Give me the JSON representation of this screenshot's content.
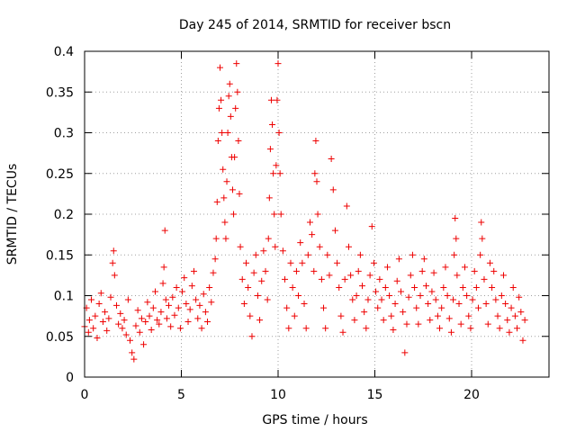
{
  "chart_data": {
    "type": "scatter",
    "title": "Day 245 of 2014, SRMTID for receiver bscn",
    "xlabel": "GPS time / hours",
    "ylabel": "SRMTID / TECUs",
    "xlim": [
      0,
      24
    ],
    "ylim": [
      0,
      0.4
    ],
    "xticks": [
      0,
      5,
      10,
      15,
      20
    ],
    "xtick_labels": [
      "0",
      "5",
      "10",
      "15",
      "20"
    ],
    "yticks": [
      0,
      0.05,
      0.1,
      0.15,
      0.2,
      0.25,
      0.3,
      0.35,
      0.4
    ],
    "ytick_labels": [
      "0",
      "0.05",
      "0.1",
      "0.15",
      "0.2",
      "0.25",
      "0.3",
      "0.35",
      "0.4"
    ],
    "grid": true,
    "marker": "+",
    "colors": {
      "series": "#ee0000",
      "grid": "#a0a0a0",
      "axis": "#000000"
    },
    "series": [
      {
        "name": "SRMTID",
        "points": [
          [
            0.0,
            0.062
          ],
          [
            0.1,
            0.085
          ],
          [
            0.2,
            0.055
          ],
          [
            0.25,
            0.07
          ],
          [
            0.35,
            0.095
          ],
          [
            0.45,
            0.06
          ],
          [
            0.55,
            0.075
          ],
          [
            0.65,
            0.048
          ],
          [
            0.75,
            0.09
          ],
          [
            0.85,
            0.103
          ],
          [
            0.95,
            0.068
          ],
          [
            1.05,
            0.08
          ],
          [
            1.15,
            0.057
          ],
          [
            1.25,
            0.072
          ],
          [
            1.35,
            0.098
          ],
          [
            1.45,
            0.14
          ],
          [
            1.5,
            0.155
          ],
          [
            1.55,
            0.125
          ],
          [
            1.65,
            0.088
          ],
          [
            1.75,
            0.065
          ],
          [
            1.85,
            0.078
          ],
          [
            1.95,
            0.06
          ],
          [
            2.05,
            0.07
          ],
          [
            2.15,
            0.052
          ],
          [
            2.25,
            0.095
          ],
          [
            2.35,
            0.045
          ],
          [
            2.45,
            0.03
          ],
          [
            2.55,
            0.022
          ],
          [
            2.65,
            0.063
          ],
          [
            2.75,
            0.082
          ],
          [
            2.85,
            0.055
          ],
          [
            2.95,
            0.072
          ],
          [
            3.05,
            0.04
          ],
          [
            3.15,
            0.068
          ],
          [
            3.25,
            0.092
          ],
          [
            3.35,
            0.075
          ],
          [
            3.45,
            0.058
          ],
          [
            3.55,
            0.085
          ],
          [
            3.65,
            0.105
          ],
          [
            3.75,
            0.07
          ],
          [
            3.85,
            0.065
          ],
          [
            3.95,
            0.08
          ],
          [
            4.05,
            0.115
          ],
          [
            4.1,
            0.135
          ],
          [
            4.15,
            0.18
          ],
          [
            4.2,
            0.095
          ],
          [
            4.25,
            0.072
          ],
          [
            4.35,
            0.088
          ],
          [
            4.45,
            0.062
          ],
          [
            4.55,
            0.098
          ],
          [
            4.65,
            0.076
          ],
          [
            4.75,
            0.11
          ],
          [
            4.85,
            0.085
          ],
          [
            4.95,
            0.06
          ],
          [
            5.05,
            0.105
          ],
          [
            5.15,
            0.122
          ],
          [
            5.25,
            0.09
          ],
          [
            5.35,
            0.068
          ],
          [
            5.45,
            0.083
          ],
          [
            5.55,
            0.112
          ],
          [
            5.65,
            0.13
          ],
          [
            5.75,
            0.095
          ],
          [
            5.85,
            0.072
          ],
          [
            5.95,
            0.088
          ],
          [
            6.05,
            0.06
          ],
          [
            6.15,
            0.102
          ],
          [
            6.25,
            0.08
          ],
          [
            6.35,
            0.068
          ],
          [
            6.45,
            0.11
          ],
          [
            6.55,
            0.092
          ],
          [
            6.65,
            0.128
          ],
          [
            6.75,
            0.145
          ],
          [
            6.8,
            0.17
          ],
          [
            6.85,
            0.215
          ],
          [
            6.9,
            0.29
          ],
          [
            6.95,
            0.33
          ],
          [
            7.0,
            0.38
          ],
          [
            7.05,
            0.34
          ],
          [
            7.1,
            0.3
          ],
          [
            7.15,
            0.255
          ],
          [
            7.2,
            0.22
          ],
          [
            7.25,
            0.19
          ],
          [
            7.3,
            0.17
          ],
          [
            7.35,
            0.24
          ],
          [
            7.4,
            0.3
          ],
          [
            7.45,
            0.345
          ],
          [
            7.5,
            0.36
          ],
          [
            7.55,
            0.32
          ],
          [
            7.6,
            0.27
          ],
          [
            7.65,
            0.23
          ],
          [
            7.7,
            0.2
          ],
          [
            7.75,
            0.27
          ],
          [
            7.8,
            0.33
          ],
          [
            7.85,
            0.385
          ],
          [
            7.9,
            0.35
          ],
          [
            7.95,
            0.29
          ],
          [
            8.0,
            0.225
          ],
          [
            8.05,
            0.16
          ],
          [
            8.15,
            0.12
          ],
          [
            8.25,
            0.09
          ],
          [
            8.35,
            0.14
          ],
          [
            8.45,
            0.11
          ],
          [
            8.55,
            0.075
          ],
          [
            8.65,
            0.05
          ],
          [
            8.75,
            0.128
          ],
          [
            8.85,
            0.15
          ],
          [
            8.95,
            0.1
          ],
          [
            9.05,
            0.07
          ],
          [
            9.15,
            0.118
          ],
          [
            9.25,
            0.155
          ],
          [
            9.35,
            0.13
          ],
          [
            9.45,
            0.095
          ],
          [
            9.5,
            0.17
          ],
          [
            9.55,
            0.22
          ],
          [
            9.6,
            0.28
          ],
          [
            9.65,
            0.34
          ],
          [
            9.7,
            0.31
          ],
          [
            9.75,
            0.25
          ],
          [
            9.8,
            0.2
          ],
          [
            9.85,
            0.16
          ],
          [
            9.9,
            0.26
          ],
          [
            9.95,
            0.34
          ],
          [
            10.0,
            0.385
          ],
          [
            10.05,
            0.3
          ],
          [
            10.1,
            0.25
          ],
          [
            10.15,
            0.2
          ],
          [
            10.25,
            0.155
          ],
          [
            10.35,
            0.12
          ],
          [
            10.45,
            0.085
          ],
          [
            10.55,
            0.06
          ],
          [
            10.65,
            0.14
          ],
          [
            10.75,
            0.11
          ],
          [
            10.85,
            0.075
          ],
          [
            10.95,
            0.13
          ],
          [
            11.05,
            0.1
          ],
          [
            11.15,
            0.165
          ],
          [
            11.25,
            0.14
          ],
          [
            11.35,
            0.09
          ],
          [
            11.45,
            0.06
          ],
          [
            11.55,
            0.15
          ],
          [
            11.65,
            0.19
          ],
          [
            11.75,
            0.175
          ],
          [
            11.85,
            0.13
          ],
          [
            11.9,
            0.25
          ],
          [
            11.95,
            0.29
          ],
          [
            12.0,
            0.24
          ],
          [
            12.05,
            0.2
          ],
          [
            12.15,
            0.16
          ],
          [
            12.25,
            0.12
          ],
          [
            12.35,
            0.085
          ],
          [
            12.45,
            0.06
          ],
          [
            12.55,
            0.15
          ],
          [
            12.65,
            0.125
          ],
          [
            12.75,
            0.268
          ],
          [
            12.85,
            0.23
          ],
          [
            12.95,
            0.18
          ],
          [
            13.05,
            0.14
          ],
          [
            13.15,
            0.11
          ],
          [
            13.25,
            0.075
          ],
          [
            13.35,
            0.055
          ],
          [
            13.45,
            0.12
          ],
          [
            13.55,
            0.21
          ],
          [
            13.65,
            0.16
          ],
          [
            13.75,
            0.125
          ],
          [
            13.85,
            0.095
          ],
          [
            13.95,
            0.07
          ],
          [
            14.05,
            0.1
          ],
          [
            14.15,
            0.13
          ],
          [
            14.25,
            0.15
          ],
          [
            14.35,
            0.112
          ],
          [
            14.45,
            0.08
          ],
          [
            14.55,
            0.06
          ],
          [
            14.65,
            0.095
          ],
          [
            14.75,
            0.125
          ],
          [
            14.85,
            0.185
          ],
          [
            14.95,
            0.14
          ],
          [
            15.05,
            0.105
          ],
          [
            15.15,
            0.085
          ],
          [
            15.25,
            0.12
          ],
          [
            15.35,
            0.095
          ],
          [
            15.45,
            0.07
          ],
          [
            15.55,
            0.11
          ],
          [
            15.65,
            0.135
          ],
          [
            15.75,
            0.1
          ],
          [
            15.85,
            0.075
          ],
          [
            15.95,
            0.058
          ],
          [
            16.05,
            0.09
          ],
          [
            16.15,
            0.118
          ],
          [
            16.25,
            0.145
          ],
          [
            16.35,
            0.105
          ],
          [
            16.45,
            0.08
          ],
          [
            16.55,
            0.03
          ],
          [
            16.65,
            0.065
          ],
          [
            16.75,
            0.098
          ],
          [
            16.85,
            0.125
          ],
          [
            16.95,
            0.15
          ],
          [
            17.05,
            0.11
          ],
          [
            17.15,
            0.085
          ],
          [
            17.25,
            0.065
          ],
          [
            17.35,
            0.1
          ],
          [
            17.45,
            0.13
          ],
          [
            17.55,
            0.145
          ],
          [
            17.65,
            0.112
          ],
          [
            17.75,
            0.09
          ],
          [
            17.85,
            0.07
          ],
          [
            17.95,
            0.105
          ],
          [
            18.05,
            0.128
          ],
          [
            18.15,
            0.095
          ],
          [
            18.25,
            0.075
          ],
          [
            18.35,
            0.06
          ],
          [
            18.45,
            0.085
          ],
          [
            18.55,
            0.11
          ],
          [
            18.65,
            0.135
          ],
          [
            18.75,
            0.1
          ],
          [
            18.85,
            0.072
          ],
          [
            18.95,
            0.055
          ],
          [
            19.05,
            0.095
          ],
          [
            19.1,
            0.15
          ],
          [
            19.15,
            0.195
          ],
          [
            19.2,
            0.17
          ],
          [
            19.25,
            0.125
          ],
          [
            19.35,
            0.09
          ],
          [
            19.45,
            0.065
          ],
          [
            19.55,
            0.11
          ],
          [
            19.65,
            0.135
          ],
          [
            19.75,
            0.1
          ],
          [
            19.85,
            0.075
          ],
          [
            19.95,
            0.06
          ],
          [
            20.05,
            0.095
          ],
          [
            20.15,
            0.13
          ],
          [
            20.25,
            0.11
          ],
          [
            20.35,
            0.085
          ],
          [
            20.45,
            0.15
          ],
          [
            20.5,
            0.19
          ],
          [
            20.55,
            0.17
          ],
          [
            20.65,
            0.12
          ],
          [
            20.75,
            0.09
          ],
          [
            20.85,
            0.065
          ],
          [
            20.95,
            0.14
          ],
          [
            21.05,
            0.11
          ],
          [
            21.15,
            0.13
          ],
          [
            21.25,
            0.095
          ],
          [
            21.35,
            0.075
          ],
          [
            21.45,
            0.06
          ],
          [
            21.55,
            0.1
          ],
          [
            21.65,
            0.125
          ],
          [
            21.75,
            0.09
          ],
          [
            21.85,
            0.07
          ],
          [
            21.95,
            0.055
          ],
          [
            22.05,
            0.085
          ],
          [
            22.15,
            0.11
          ],
          [
            22.25,
            0.075
          ],
          [
            22.35,
            0.06
          ],
          [
            22.45,
            0.098
          ],
          [
            22.55,
            0.08
          ],
          [
            22.65,
            0.045
          ],
          [
            22.75,
            0.07
          ]
        ]
      }
    ]
  }
}
